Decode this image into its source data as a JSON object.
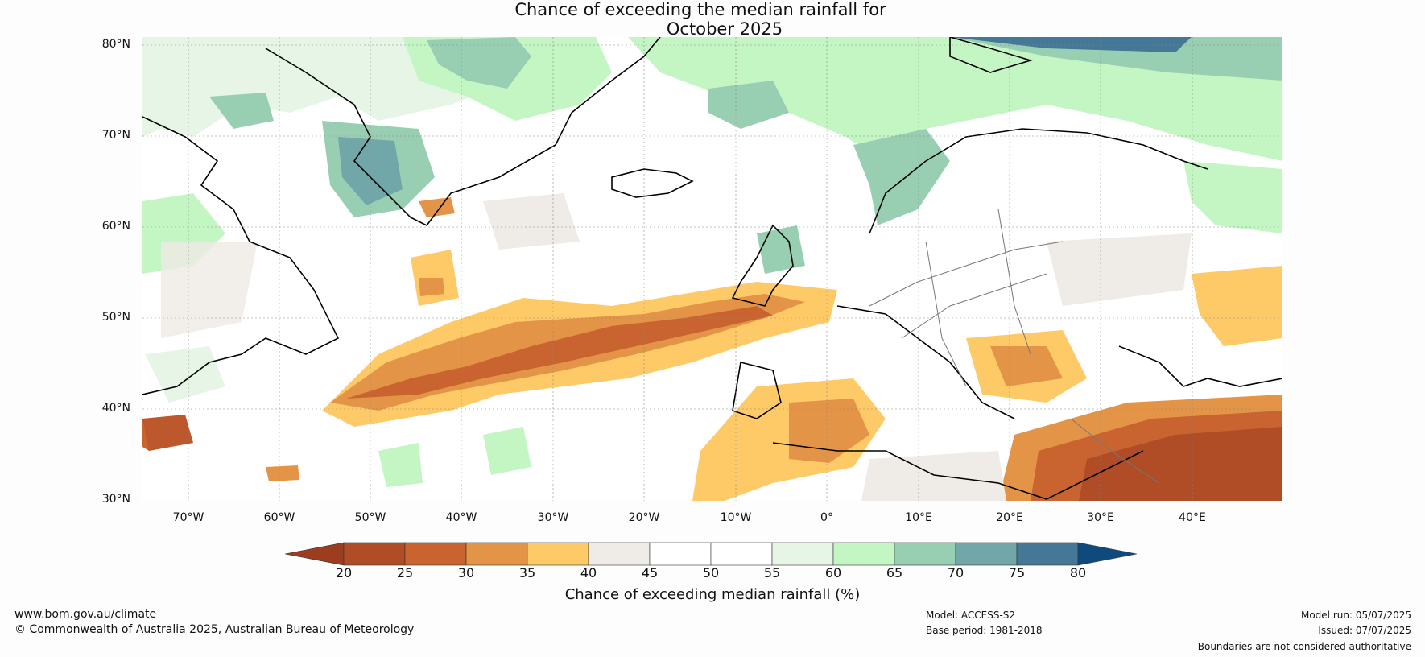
{
  "title": {
    "line1": "Chance of exceeding the median rainfall for",
    "line2": "October 2025"
  },
  "map": {
    "lat_labels": [
      "80°N",
      "70°N",
      "60°N",
      "50°N",
      "40°N",
      "30°N"
    ],
    "lon_labels": [
      "70°W",
      "60°W",
      "50°W",
      "40°W",
      "30°W",
      "20°W",
      "10°W",
      "0°",
      "10°E",
      "20°E",
      "30°E",
      "40°E"
    ],
    "lon_range": [
      -75,
      50
    ],
    "lat_range": [
      30,
      81
    ]
  },
  "colorbar": {
    "label": "Chance of exceeding median rainfall (%)",
    "ticks": [
      "20",
      "25",
      "30",
      "35",
      "40",
      "45",
      "50",
      "55",
      "60",
      "65",
      "70",
      "75",
      "80"
    ],
    "colors": [
      "#9d3d1f",
      "#b04c26",
      "#c96430",
      "#e39447",
      "#fdca67",
      "#efebe6",
      "#ffffff",
      "#ffffff",
      "#e6f5e6",
      "#c4f6c4",
      "#98cfb3",
      "#71a7a9",
      "#457796",
      "#0f4a7e"
    ]
  },
  "footer": {
    "website": "www.bom.gov.au/climate",
    "copyright": "© Commonwealth of Australia 2025, Australian Bureau of Meteorology",
    "model": "Model: ACCESS-S2",
    "base_period": "Base period: 1981-2018",
    "model_run": "Model run: 05/07/2025",
    "issued": "Issued: 07/07/2025",
    "disclaimer": "Boundaries are not considered authoritative"
  }
}
